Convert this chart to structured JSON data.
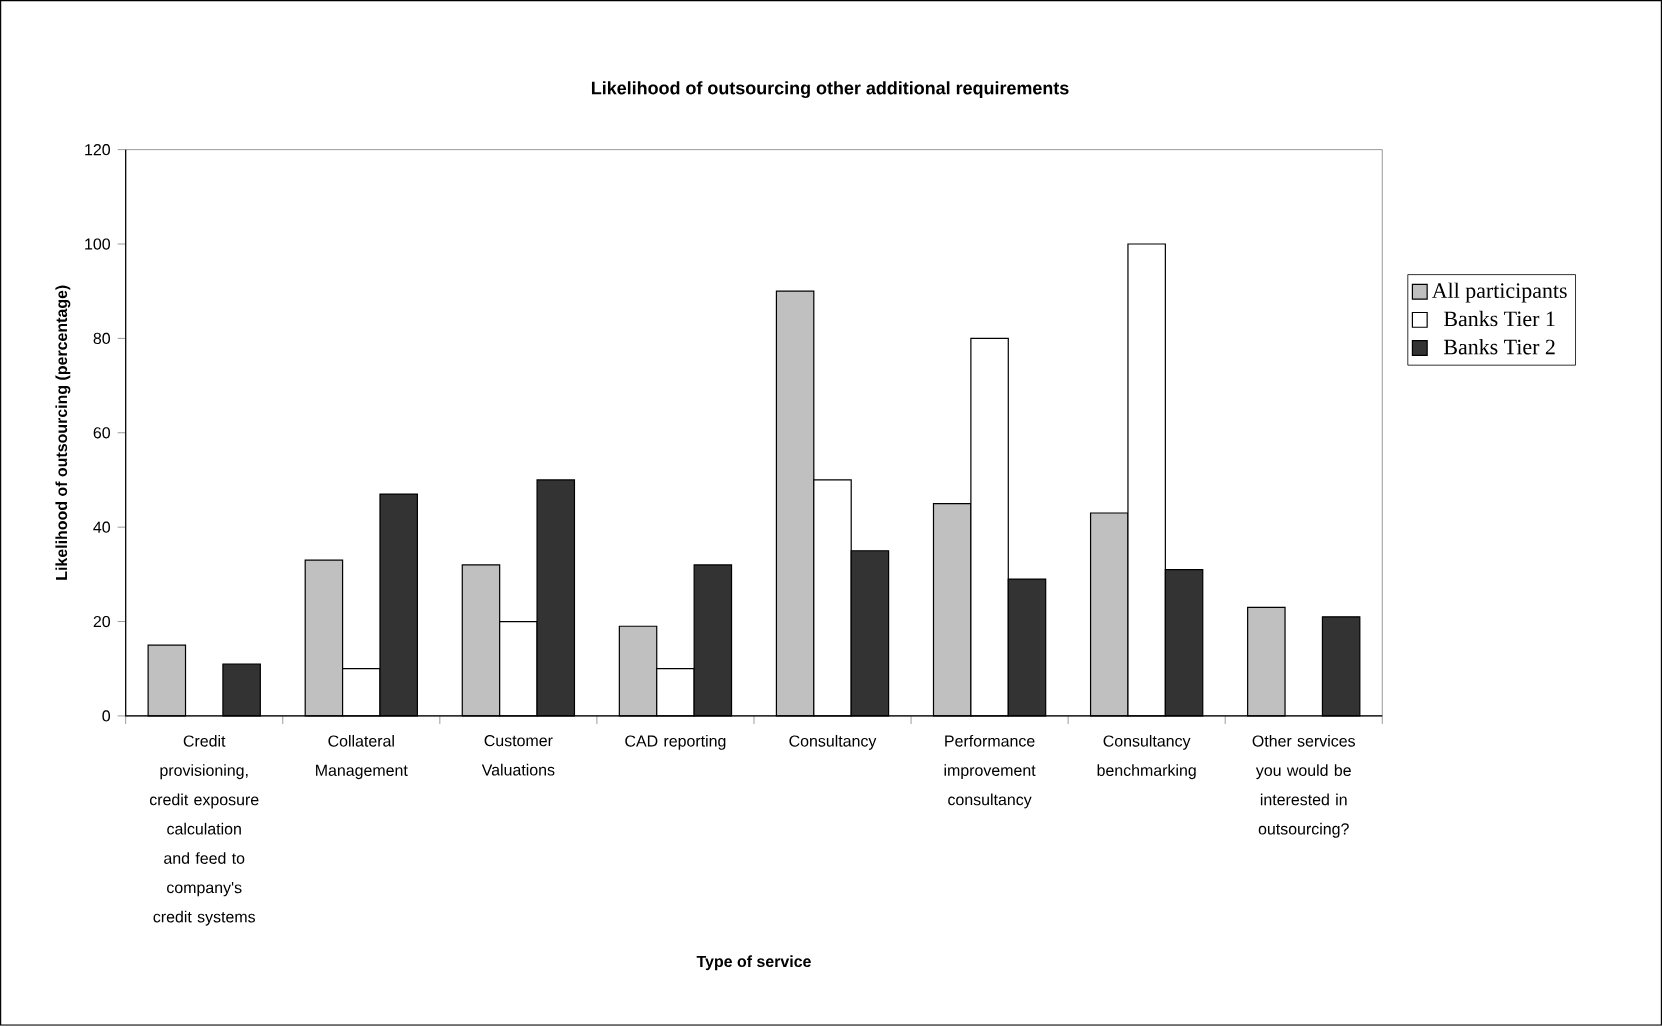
{
  "chart_data": {
    "type": "bar",
    "title": "Likelihood of outsourcing other additional requirements",
    "xlabel": "Type of service",
    "ylabel": "Likelihood of outsourcing (percentage)",
    "categories": [
      "Credit provisioning, credit exposure calculation and feed to company's credit systems",
      "Collateral Management",
      "Customer Valuations",
      "CAD reporting",
      "Consultancy",
      "Performance improvement consultancy",
      "Consultancy benchmarking",
      "Other services you would be interested in outsourcing?"
    ],
    "series": [
      {
        "name": "All participants",
        "color": "#c0c0c0",
        "values": [
          15,
          33,
          32,
          19,
          90,
          45,
          43,
          23
        ]
      },
      {
        "name": "Banks Tier 1",
        "color": "#ffffff",
        "values": [
          null,
          10,
          20,
          10,
          50,
          80,
          100,
          null
        ]
      },
      {
        "name": "Banks Tier 2",
        "color": "#333333",
        "values": [
          11,
          47,
          50,
          32,
          35,
          29,
          31,
          21
        ]
      }
    ],
    "ylim": [
      0,
      120
    ],
    "yticks": [
      0,
      20,
      40,
      60,
      80,
      100,
      120
    ],
    "legend": "right",
    "grid": false
  }
}
